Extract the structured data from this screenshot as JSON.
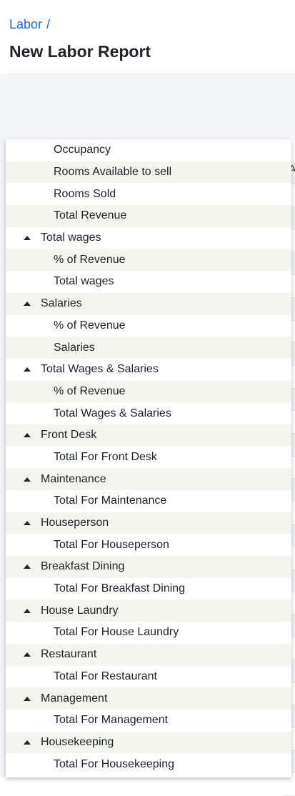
{
  "breadcrumb": {
    "parent": "Labor",
    "separator": "/"
  },
  "page": {
    "title": "New Labor Report"
  },
  "background": {
    "clipped_text": "A"
  },
  "dropdown": {
    "rows": [
      {
        "label": "Occupancy",
        "kind": "child"
      },
      {
        "label": "Rooms Available to sell",
        "kind": "child"
      },
      {
        "label": "Rooms Sold",
        "kind": "child"
      },
      {
        "label": "Total Revenue",
        "kind": "child"
      },
      {
        "label": "Total wages",
        "kind": "group"
      },
      {
        "label": "% of Revenue",
        "kind": "child"
      },
      {
        "label": "Total wages",
        "kind": "child"
      },
      {
        "label": "Salaries",
        "kind": "group"
      },
      {
        "label": "% of Revenue",
        "kind": "child"
      },
      {
        "label": "Salaries",
        "kind": "child"
      },
      {
        "label": "Total Wages & Salaries",
        "kind": "group"
      },
      {
        "label": "% of Revenue",
        "kind": "child"
      },
      {
        "label": "Total Wages & Salaries",
        "kind": "child"
      },
      {
        "label": "Front Desk",
        "kind": "group"
      },
      {
        "label": "Total For Front Desk",
        "kind": "child"
      },
      {
        "label": "Maintenance",
        "kind": "group"
      },
      {
        "label": "Total For Maintenance",
        "kind": "child"
      },
      {
        "label": "Houseperson",
        "kind": "group"
      },
      {
        "label": "Total For Houseperson",
        "kind": "child"
      },
      {
        "label": "Breakfast Dining",
        "kind": "group"
      },
      {
        "label": "Total For Breakfast Dining",
        "kind": "child"
      },
      {
        "label": "House Laundry",
        "kind": "group"
      },
      {
        "label": "Total For House Laundry",
        "kind": "child"
      },
      {
        "label": "Restaurant",
        "kind": "group"
      },
      {
        "label": "Total For Restaurant",
        "kind": "child"
      },
      {
        "label": "Management",
        "kind": "group"
      },
      {
        "label": "Total For Management",
        "kind": "child"
      },
      {
        "label": "Housekeeping",
        "kind": "group"
      },
      {
        "label": "Total For Housekeeping",
        "kind": "child"
      }
    ],
    "group_icon": "caret-up-icon"
  }
}
